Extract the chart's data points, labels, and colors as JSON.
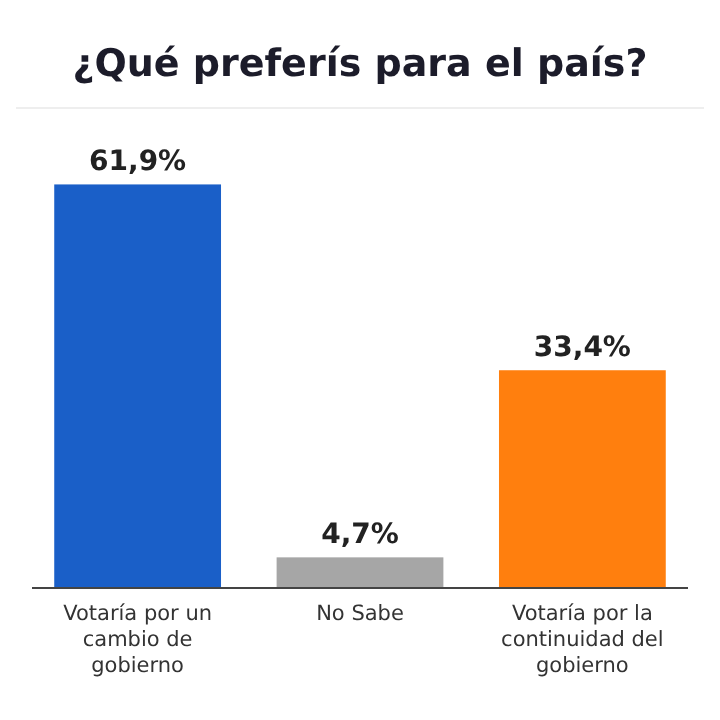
{
  "chart_data": {
    "type": "bar",
    "title": "¿Qué preferís para el país?",
    "categories": [
      "Votaría por un cambio de gobierno",
      "No Sabe",
      "Votaría por la continuidad del gobierno"
    ],
    "values": [
      61.9,
      4.7,
      33.4
    ],
    "value_labels": [
      "61,9%",
      "4,7%",
      "33,4%"
    ],
    "colors": [
      "#1a5fc8",
      "#a6a6a6",
      "#ff7f0e"
    ]
  }
}
